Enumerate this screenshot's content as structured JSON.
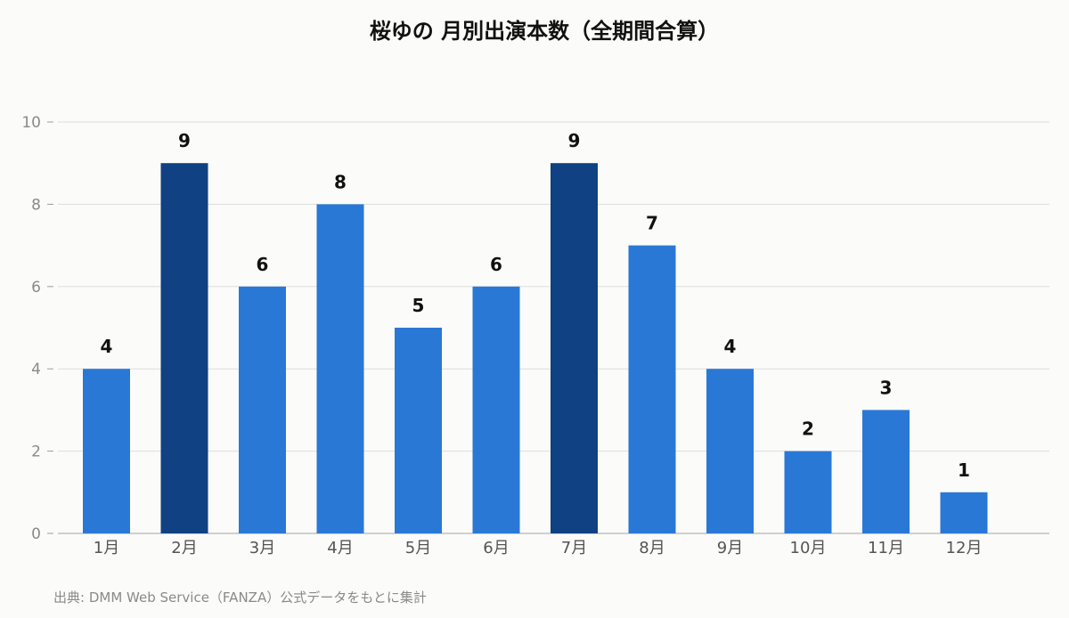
{
  "chart_data": {
    "type": "bar",
    "title": "桜ゆの 月別出演本数（全期間合算）",
    "categories": [
      "1月",
      "2月",
      "3月",
      "4月",
      "5月",
      "6月",
      "7月",
      "8月",
      "9月",
      "10月",
      "11月",
      "12月"
    ],
    "values": [
      4,
      9,
      6,
      8,
      5,
      6,
      9,
      7,
      4,
      2,
      3,
      1
    ],
    "xlabel": "",
    "ylabel": "",
    "ylim": [
      0,
      10
    ],
    "yticks": [
      "0",
      "2",
      "4",
      "6",
      "8",
      "10"
    ],
    "grid": true,
    "colors": {
      "default_bar": "#2a78d6",
      "highlight_bar": "#0f4183",
      "background": "#fbfbf9",
      "gridline": "#dddddd",
      "axis": "#b5b5b5",
      "tick_text": "#8a8a8a",
      "value_text": "#111111"
    },
    "highlighted_categories": [
      "2月",
      "7月"
    ],
    "data_labels": [
      "4",
      "9",
      "6",
      "8",
      "5",
      "6",
      "9",
      "7",
      "4",
      "2",
      "3",
      "1"
    ],
    "source": "出典: DMM Web Service（FANZA）公式データをもとに集計"
  }
}
